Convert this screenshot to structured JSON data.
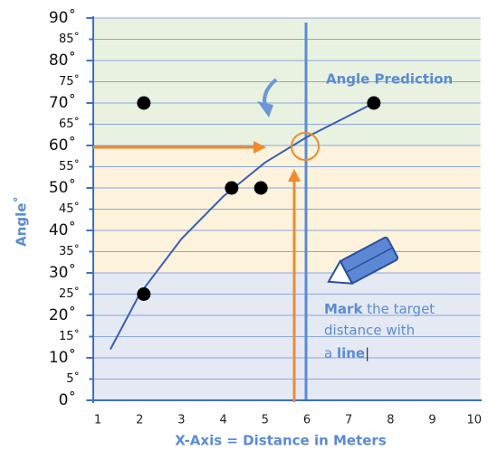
{
  "chart_data": {
    "type": "scatter",
    "y_label": "Angle˚",
    "x_label": "X-Axis = Distance in Meters",
    "xlim": [
      0.9,
      10.15
    ],
    "ylim": [
      0,
      90
    ],
    "xticks": [
      1,
      2,
      3,
      4,
      5,
      6,
      7,
      8,
      9,
      10
    ],
    "yticks": [
      {
        "value": 0,
        "label": "0˚"
      },
      {
        "value": 5,
        "label": "5˚"
      },
      {
        "value": 10,
        "label": "10˚"
      },
      {
        "value": 15,
        "label": "15˚"
      },
      {
        "value": 20,
        "label": "20˚"
      },
      {
        "value": 25,
        "label": "25˚"
      },
      {
        "value": 30,
        "label": "30˚"
      },
      {
        "value": 35,
        "label": "35˚"
      },
      {
        "value": 40,
        "label": "40˚"
      },
      {
        "value": 45,
        "label": "45˚"
      },
      {
        "value": 50,
        "label": "50˚"
      },
      {
        "value": 55,
        "label": "55˚"
      },
      {
        "value": 60,
        "label": "60˚"
      },
      {
        "value": 65,
        "label": "65˚"
      },
      {
        "value": 70,
        "label": "70˚"
      },
      {
        "value": 75,
        "label": "75˚"
      },
      {
        "value": 80,
        "label": "80˚"
      },
      {
        "value": 85,
        "label": "85˚"
      },
      {
        "value": 90,
        "label": "90˚"
      }
    ],
    "grid": true,
    "bands": [
      {
        "from": 0,
        "to": 30,
        "color": "#e4e9f4"
      },
      {
        "from": 30,
        "to": 60,
        "color": "#fdf3dc"
      },
      {
        "from": 60,
        "to": 90,
        "color": "#e9f2e1"
      }
    ],
    "points": {
      "color": "#000000",
      "x": [
        2.1,
        2.1,
        4.2,
        4.9,
        7.6
      ],
      "values": [
        70,
        25,
        50,
        50,
        70
      ]
    },
    "curve": {
      "color": "#3a5db5",
      "x": [
        1.3,
        2,
        3,
        4,
        5,
        6,
        7,
        7.6
      ],
      "values": [
        12,
        25,
        38,
        48,
        56,
        62,
        67,
        70
      ]
    },
    "prediction_label": "Angle Prediction",
    "note": {
      "bold1": "Mark",
      "text1": " the target",
      "text2": "distance with",
      "text3": "a ",
      "bold2": "line",
      "cursor": "|"
    }
  }
}
